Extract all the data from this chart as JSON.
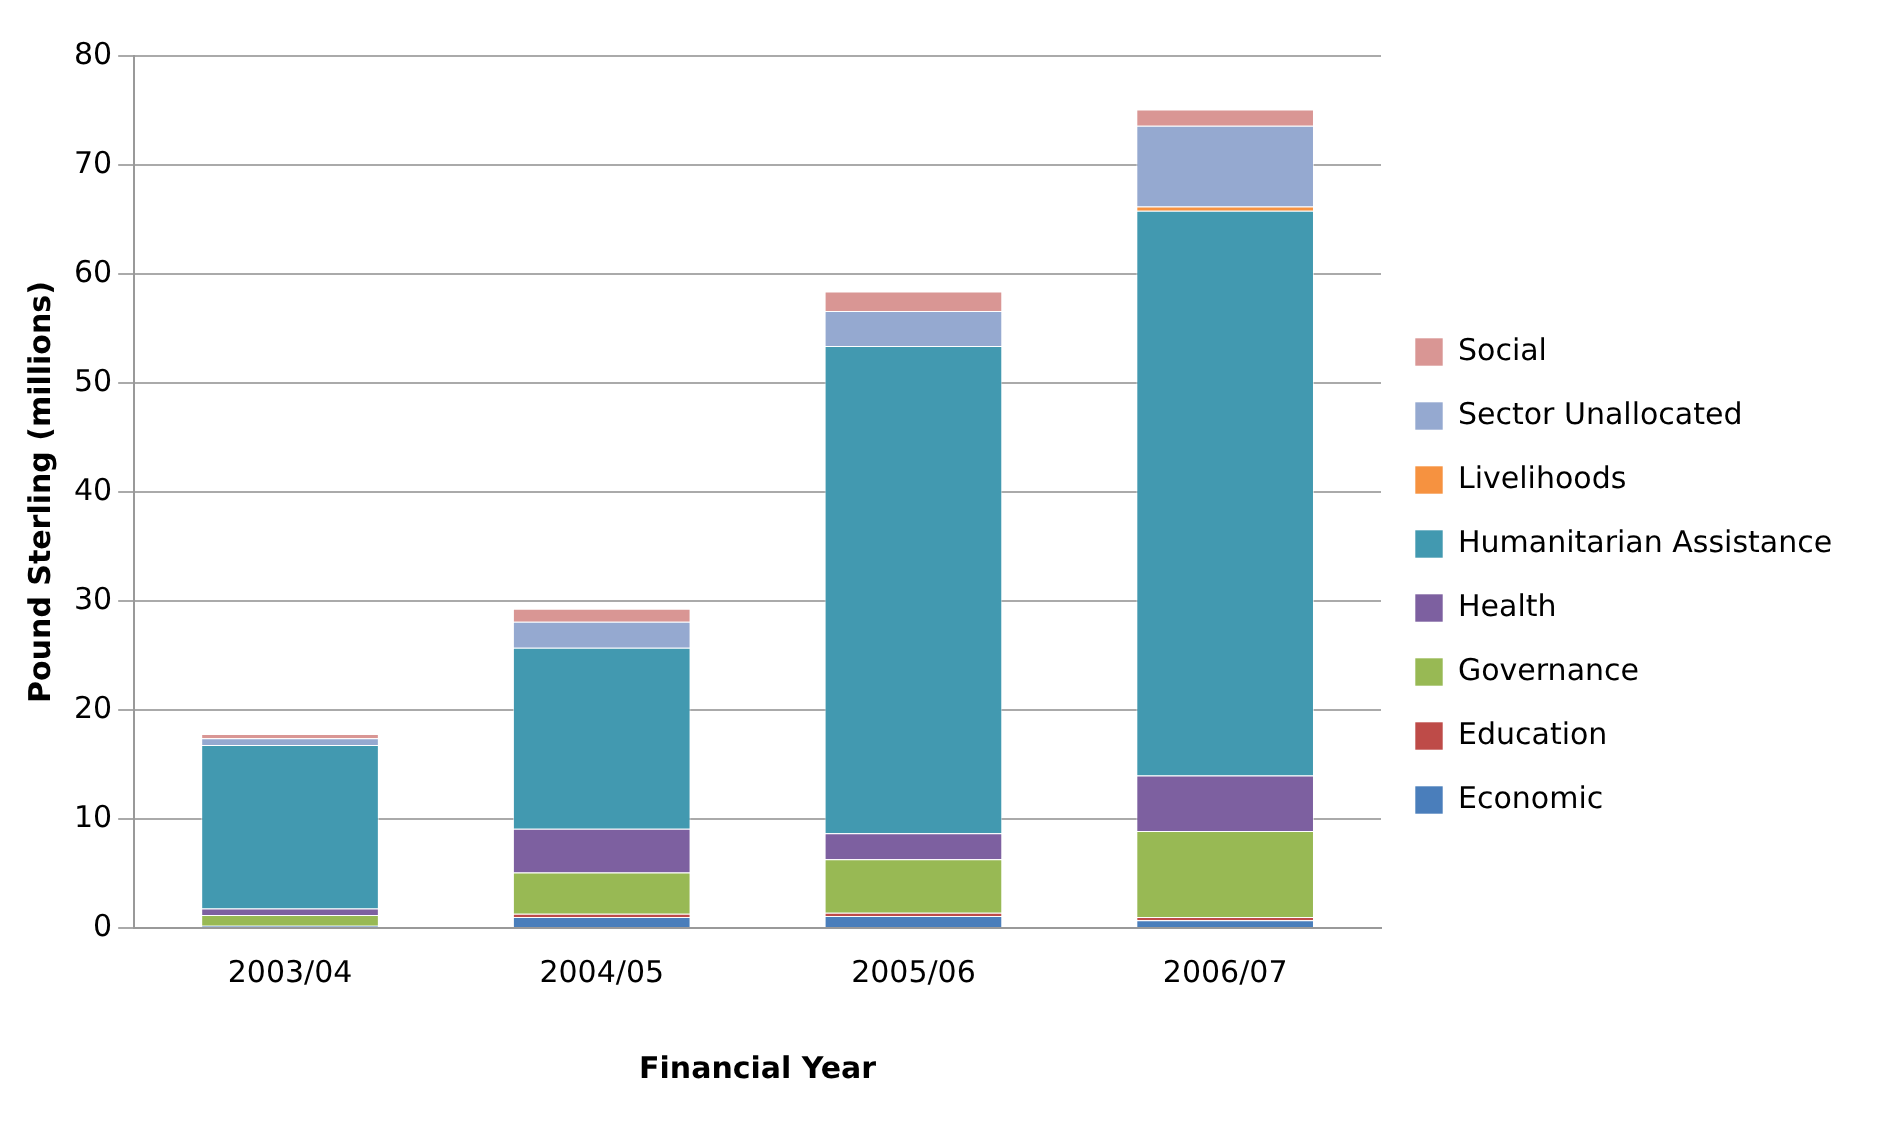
{
  "chart_data": {
    "type": "bar",
    "stacked": true,
    "xlabel": "Financial Year",
    "ylabel": "Pound Sterling (millions)",
    "categories": [
      "2003/04",
      "2004/05",
      "2005/06",
      "2006/07"
    ],
    "series": [
      {
        "name": "Economic",
        "color": "#4a7ebb",
        "values": [
          0.2,
          1.0,
          1.1,
          0.7
        ]
      },
      {
        "name": "Education",
        "color": "#be4b48",
        "values": [
          0,
          0.3,
          0.3,
          0.3
        ]
      },
      {
        "name": "Governance",
        "color": "#98b954",
        "values": [
          1.0,
          3.8,
          4.9,
          7.9
        ]
      },
      {
        "name": "Health",
        "color": "#7d60a0",
        "values": [
          0.6,
          4.0,
          2.4,
          5.1
        ]
      },
      {
        "name": "Humanitarian Assistance",
        "color": "#4299b0",
        "values": [
          15.0,
          16.6,
          44.7,
          51.8
        ]
      },
      {
        "name": "Livelihoods",
        "color": "#f69240",
        "values": [
          0,
          0,
          0,
          0.4
        ]
      },
      {
        "name": "Sector Unallocated",
        "color": "#95a9d0",
        "values": [
          0.6,
          2.4,
          3.2,
          7.4
        ]
      },
      {
        "name": "Social",
        "color": "#d99694",
        "values": [
          0.4,
          1.2,
          1.8,
          1.5
        ]
      }
    ],
    "ylim": [
      0,
      80
    ],
    "yticks": [
      0,
      10,
      20,
      30,
      40,
      50,
      60,
      70,
      80
    ],
    "grid": "y",
    "legend": "right"
  }
}
